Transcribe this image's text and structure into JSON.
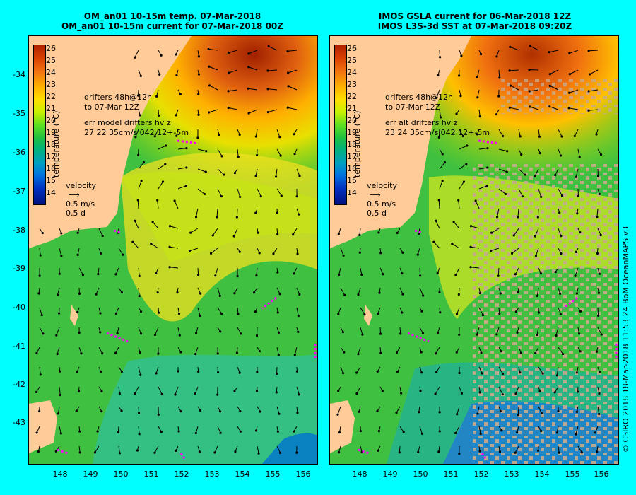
{
  "titles": {
    "left": {
      "line1": "OM_an01 10-15m temp. 07-Mar-2018",
      "line2": "OM_an01 10-15m current for 07-Mar-2018 00Z"
    },
    "right": {
      "line1": "IMOS GSLA current for 06-Mar-2018 12Z",
      "line2": "IMOS L3S-3d SST at 07-Mar-2018 09:20Z"
    }
  },
  "colorbar": {
    "ticks": [
      "26",
      "25",
      "24",
      "23",
      "22",
      "21",
      "20",
      "19",
      "18",
      "17",
      "16",
      "15",
      "14"
    ],
    "label": "temperature (°C)"
  },
  "left_notes": {
    "drifters": "drifters 48h@12h",
    "to": "to 07-Mar 12Z",
    "err": "err model drifters hv z",
    "stats": "27 22 35cm/s 042 12+-5m"
  },
  "right_notes": {
    "drifters": "drifters 48h@12h",
    "to": "to 07-Mar 12Z",
    "err": "err alt drifters hv z",
    "stats": "23 24 35cm/s 042 12+-5m"
  },
  "velocity": {
    "label": "velocity",
    "speed": "0.5 m/s",
    "time": "0.5 d"
  },
  "y_axis": [
    "-34",
    "-35",
    "-36",
    "-37",
    "-38",
    "-39",
    "-40",
    "-41",
    "-42",
    "-43"
  ],
  "x_axis_left": [
    "148",
    "149",
    "150",
    "151",
    "152",
    "153",
    "154",
    "155",
    "156"
  ],
  "x_axis_right": [
    "148",
    "149",
    "150",
    "151",
    "152",
    "153",
    "154",
    "155",
    "156"
  ],
  "credit": "© CSIRO 2018   18-Mar-2018 11:53:24 BoM OceanMAPS v3",
  "colors": {
    "background": "#00ffff",
    "land": "#ffcc99",
    "drifter": "#ff00ff",
    "missing": "#c8aa8c"
  }
}
